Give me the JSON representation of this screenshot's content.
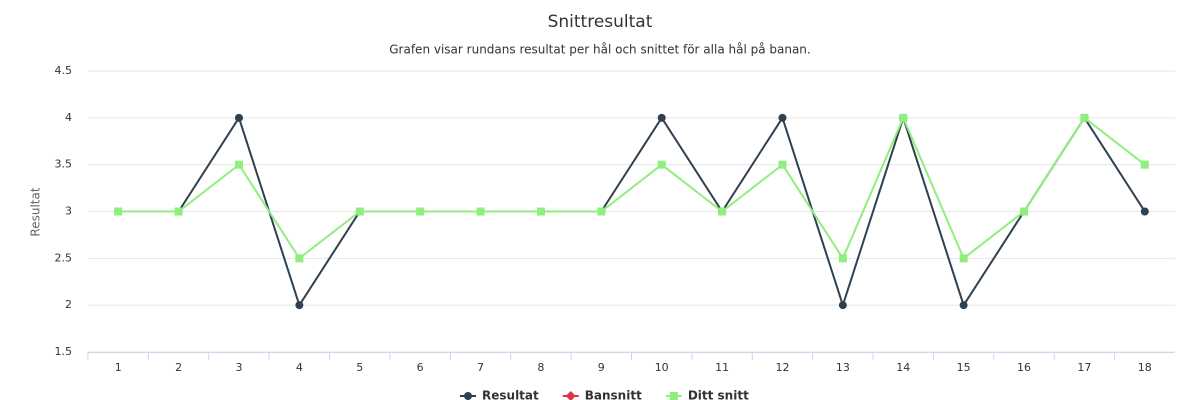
{
  "chart_data": {
    "type": "line",
    "title": "Snittresultat",
    "subtitle": "Grafen visar rundans resultat per hål och snittet för alla hål på banan.",
    "y_label": "Resultat",
    "categories": [
      1,
      2,
      3,
      4,
      5,
      6,
      7,
      8,
      9,
      10,
      11,
      12,
      13,
      14,
      15,
      16,
      17,
      18
    ],
    "series": [
      {
        "name": "Resultat",
        "color": "#2f4050",
        "marker": "circle",
        "values": [
          3,
          3,
          4,
          2,
          3,
          3,
          3,
          3,
          3,
          4,
          3,
          4,
          2,
          4,
          2,
          3,
          4,
          3
        ]
      },
      {
        "name": "Bansnitt",
        "color": "#e0304a",
        "marker": "diamond",
        "values": [
          null,
          null,
          null,
          null,
          null,
          null,
          null,
          null,
          null,
          null,
          null,
          null,
          null,
          null,
          null,
          null,
          null,
          null
        ]
      },
      {
        "name": "Ditt snitt",
        "color": "#90ee7e",
        "marker": "square",
        "values": [
          3,
          3,
          3.5,
          2.5,
          3,
          3,
          3,
          3,
          3,
          3.5,
          3,
          3.5,
          2.5,
          4,
          2.5,
          3,
          4,
          3.5
        ]
      }
    ],
    "ylim": [
      1.5,
      4.5
    ],
    "yticks": [
      1.5,
      2,
      2.5,
      3,
      3.5,
      4,
      4.5
    ],
    "grid": true
  }
}
